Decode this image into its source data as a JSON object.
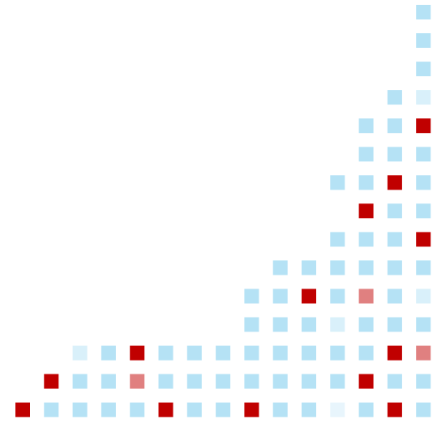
{
  "grid": {
    "cell_colors": [
      [
        null,
        null,
        null,
        null,
        null,
        null,
        null,
        null,
        null,
        null,
        null,
        null,
        null,
        null,
        "#b5e2f5"
      ],
      [
        null,
        null,
        null,
        null,
        null,
        null,
        null,
        null,
        null,
        null,
        null,
        null,
        null,
        null,
        "#b5e2f5"
      ],
      [
        null,
        null,
        null,
        null,
        null,
        null,
        null,
        null,
        null,
        null,
        null,
        null,
        null,
        null,
        "#b5e2f5"
      ],
      [
        null,
        null,
        null,
        null,
        null,
        null,
        null,
        null,
        null,
        null,
        null,
        null,
        null,
        "#b5e2f5",
        "#d9f0fa"
      ],
      [
        null,
        null,
        null,
        null,
        null,
        null,
        null,
        null,
        null,
        null,
        null,
        null,
        "#b5e2f5",
        "#b5e2f5",
        "#c00000"
      ],
      [
        null,
        null,
        null,
        null,
        null,
        null,
        null,
        null,
        null,
        null,
        null,
        null,
        "#b5e2f5",
        "#b5e2f5",
        "#b5e2f5"
      ],
      [
        null,
        null,
        null,
        null,
        null,
        null,
        null,
        null,
        null,
        null,
        null,
        "#b5e2f5",
        "#b5e2f5",
        "#c00000",
        "#b5e2f5"
      ],
      [
        null,
        null,
        null,
        null,
        null,
        null,
        null,
        null,
        null,
        null,
        null,
        null,
        "#c00000",
        "#b5e2f5",
        "#b5e2f5"
      ],
      [
        null,
        null,
        null,
        null,
        null,
        null,
        null,
        null,
        null,
        null,
        null,
        "#b5e2f5",
        "#b5e2f5",
        "#b5e2f5",
        "#c00000"
      ],
      [
        null,
        null,
        null,
        null,
        null,
        null,
        null,
        null,
        null,
        "#b5e2f5",
        "#b5e2f5",
        "#b5e2f5",
        "#b5e2f5",
        "#b5e2f5",
        "#b5e2f5"
      ],
      [
        null,
        null,
        null,
        null,
        null,
        null,
        null,
        null,
        "#b5e2f5",
        "#b5e2f5",
        "#c00000",
        "#b5e2f5",
        "#e08080",
        "#b5e2f5",
        "#d9f0fa"
      ],
      [
        null,
        null,
        null,
        null,
        null,
        null,
        null,
        null,
        "#b5e2f5",
        "#b5e2f5",
        "#b5e2f5",
        "#d9f0fa",
        "#b5e2f5",
        "#b5e2f5",
        "#b5e2f5"
      ],
      [
        null,
        null,
        "#d9f0fa",
        "#b5e2f5",
        "#c00000",
        "#b5e2f5",
        "#b5e2f5",
        "#b5e2f5",
        "#b5e2f5",
        "#b5e2f5",
        "#b5e2f5",
        "#b5e2f5",
        "#b5e2f5",
        "#c00000",
        "#e08080"
      ],
      [
        null,
        "#c00000",
        "#b5e2f5",
        "#b5e2f5",
        "#e08080",
        "#b5e2f5",
        "#b5e2f5",
        "#b5e2f5",
        "#b5e2f5",
        "#b5e2f5",
        "#b5e2f5",
        "#b5e2f5",
        "#c00000",
        "#b5e2f5",
        "#b5e2f5"
      ],
      [
        "#c00000",
        "#b5e2f5",
        "#b5e2f5",
        "#b5e2f5",
        "#b5e2f5",
        "#c00000",
        "#b5e2f5",
        "#b5e2f5",
        "#c00000",
        "#b5e2f5",
        "#b5e2f5",
        "#e8f5fc",
        "#b5e2f5",
        "#c00000",
        "#b5e2f5"
      ]
    ]
  }
}
